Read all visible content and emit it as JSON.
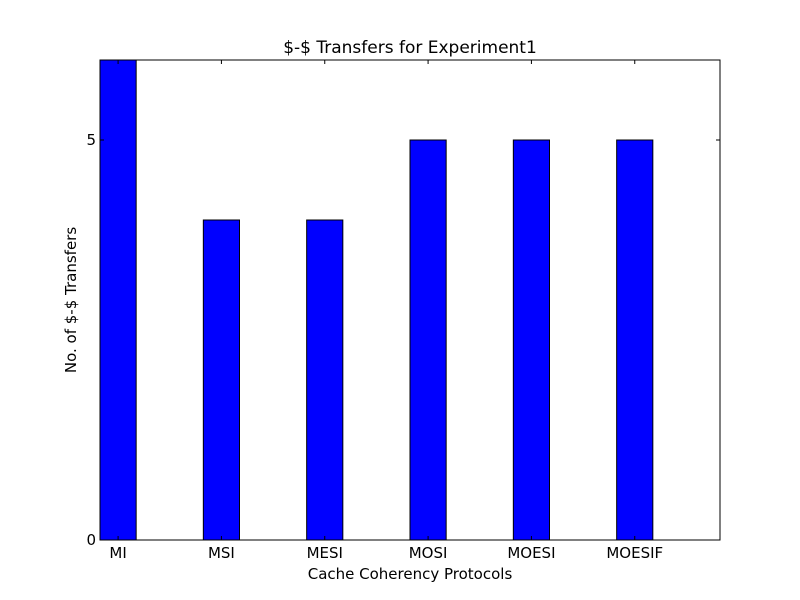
{
  "chart_data": {
    "type": "bar",
    "title": "$-$ Transfers for Experiment1",
    "xlabel": "Cache Coherency Protocols",
    "ylabel": "No. of $-$ Transfers",
    "categories": [
      "MI",
      "MSI",
      "MESI",
      "MOSI",
      "MOESI",
      "MOESIF"
    ],
    "values": [
      6,
      4,
      4,
      5,
      5,
      5
    ],
    "ylim": [
      0,
      6
    ],
    "yticks": [
      "0",
      "5"
    ],
    "grid": false,
    "bar_color": "#0000ff"
  }
}
